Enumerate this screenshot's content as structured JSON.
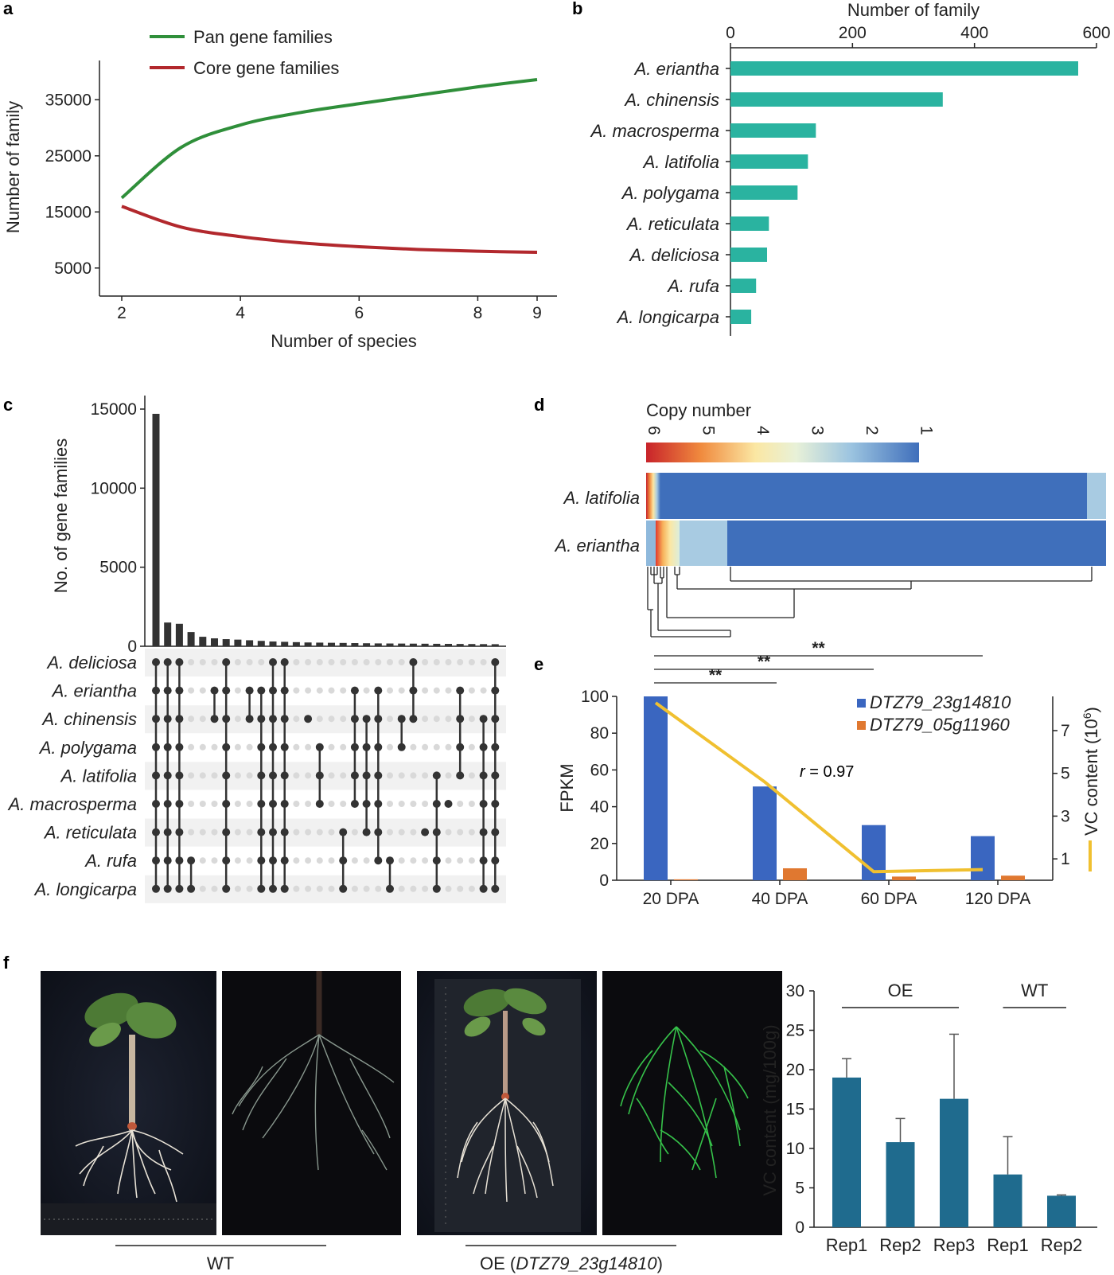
{
  "panels": {
    "a": "a",
    "b": "b",
    "c": "c",
    "d": "d",
    "e": "e",
    "f": "f"
  },
  "chart_data": [
    {
      "id": "a",
      "type": "line",
      "xlabel": "Number of species",
      "ylabel": "Number of family",
      "xlim": [
        2,
        9
      ],
      "ylim": [
        0,
        42000
      ],
      "xticks": [
        2,
        4,
        6,
        8,
        9
      ],
      "yticks": [
        5000,
        15000,
        25000,
        35000
      ],
      "series": [
        {
          "name": "Pan gene families",
          "color": "#2f8f3a",
          "x": [
            2,
            3,
            4,
            5,
            6,
            7,
            8,
            9
          ],
          "y": [
            17500,
            26500,
            30500,
            32700,
            34300,
            35800,
            37300,
            38600
          ]
        },
        {
          "name": "Core gene families",
          "color": "#b2282d",
          "x": [
            2,
            3,
            4,
            5,
            6,
            7,
            8,
            9
          ],
          "y": [
            16000,
            12300,
            10600,
            9500,
            8800,
            8300,
            8000,
            7800
          ]
        }
      ]
    },
    {
      "id": "b",
      "type": "bar",
      "orientation": "horizontal",
      "xlabel": "Number of family",
      "xlim": [
        0,
        600
      ],
      "xticks": [
        0,
        200,
        400,
        600
      ],
      "color": "#2ab3a0",
      "categories": [
        "A. eriantha",
        "A. chinensis",
        "A. macrosperma",
        "A. latifolia",
        "A. polygama",
        "A. reticulata",
        "A. deliciosa",
        "A. rufa",
        "A. longicarpa"
      ],
      "values": [
        570,
        348,
        140,
        127,
        110,
        63,
        60,
        42,
        34
      ]
    },
    {
      "id": "c",
      "type": "bar",
      "ylabel": "No. of gene families",
      "ylim": [
        0,
        16000
      ],
      "yticks": [
        0,
        5000,
        10000,
        15000
      ],
      "values": [
        14700,
        1500,
        1420,
        900,
        600,
        500,
        450,
        420,
        380,
        340,
        300,
        280,
        260,
        240,
        230,
        220,
        210,
        200,
        190,
        180,
        175,
        170,
        165,
        160,
        155,
        150,
        145,
        140,
        135,
        130
      ],
      "set_labels": [
        "A. deliciosa",
        "A. eriantha",
        "A. chinensis",
        "A. polygama",
        "A. latifolia",
        "A. macrosperma",
        "A. reticulata",
        "A. rufa",
        "A. longicarpa"
      ],
      "intersections": [
        [
          0,
          1,
          2,
          3,
          4,
          5,
          6,
          7,
          8
        ],
        [
          0,
          1,
          2,
          3,
          4,
          5,
          6,
          7,
          8
        ],
        [
          0,
          1,
          2,
          3,
          4,
          5,
          6,
          7,
          8
        ],
        [
          7,
          8
        ],
        [],
        [
          1,
          2
        ],
        [
          0,
          1,
          2,
          3,
          4,
          5,
          6,
          7,
          8
        ],
        [],
        [
          1,
          2
        ],
        [
          1,
          2,
          3,
          4,
          5,
          6,
          7,
          8
        ],
        [
          0,
          1,
          2,
          3,
          4,
          5,
          6,
          7,
          8
        ],
        [
          0,
          1,
          2,
          3,
          4,
          5,
          6,
          7,
          8
        ],
        [],
        [
          2
        ],
        [
          3,
          4,
          5
        ],
        [],
        [
          6,
          7,
          8
        ],
        [
          1,
          2,
          3,
          4,
          5
        ],
        [
          2,
          3,
          4,
          5,
          6
        ],
        [
          1,
          2,
          3,
          4,
          5,
          6,
          7
        ],
        [
          7,
          8
        ],
        [
          2,
          3
        ],
        [
          0,
          1,
          2
        ],
        [
          6
        ],
        [
          4,
          5,
          6,
          7,
          8
        ],
        [
          5
        ],
        [
          1,
          2,
          3,
          4
        ],
        [],
        [
          2,
          3,
          4,
          5,
          6,
          7,
          8
        ],
        [
          0,
          1,
          2,
          3,
          4,
          5,
          6,
          7,
          8
        ]
      ]
    },
    {
      "id": "d",
      "type": "heatmap",
      "legend_title": "Copy number",
      "legend_ticks": [
        "6",
        "5",
        "4",
        "3",
        "2",
        "1"
      ],
      "rows": [
        "A. latifolia",
        "A. eriantha"
      ]
    },
    {
      "id": "e",
      "type": "bar",
      "categories": [
        "20 DPA",
        "40 DPA",
        "60 DPA",
        "120 DPA"
      ],
      "ylabel": "FPKM",
      "ylim": [
        0,
        100
      ],
      "yticks": [
        0,
        20,
        40,
        60,
        80,
        100
      ],
      "y2label_base": "VC content (10",
      "y2label_exp": "6",
      "y2label_end": ")",
      "y2lim": [
        0,
        8.6
      ],
      "y2ticks": [
        1,
        3,
        5,
        7
      ],
      "series": [
        {
          "name": "DTZ79_23g14810",
          "color": "#3a66c0",
          "values": [
            100,
            51,
            30,
            24
          ]
        },
        {
          "name": "DTZ79_05g11960",
          "color": "#e07830",
          "values": [
            0.5,
            6.5,
            2,
            2.5
          ]
        }
      ],
      "line": {
        "color": "#f0c030",
        "values": [
          8.3,
          4.6,
          0.4,
          0.5
        ]
      },
      "annotation_r": "r",
      "annotation_val": " = 0.97",
      "significance": [
        "**",
        "**",
        "**"
      ]
    },
    {
      "id": "f",
      "type": "bar",
      "ylabel": "VC content (mg/100g)",
      "ylim": [
        0,
        30
      ],
      "yticks": [
        0,
        5,
        10,
        15,
        20,
        25,
        30
      ],
      "color": "#1f6b8e",
      "categories": [
        "Rep1",
        "Rep2",
        "Rep3",
        "Rep1",
        "Rep2"
      ],
      "values": [
        19,
        10.8,
        16.3,
        6.7,
        4.0
      ],
      "errors": [
        2.4,
        3.0,
        8.2,
        4.8,
        0.1
      ],
      "groups": [
        "OE",
        "WT"
      ]
    }
  ],
  "photos": {
    "wt_label": "WT",
    "oe_label_prefix": "OE (",
    "oe_label_gene": "DTZ79_23g14810",
    "oe_label_suffix": ")"
  }
}
